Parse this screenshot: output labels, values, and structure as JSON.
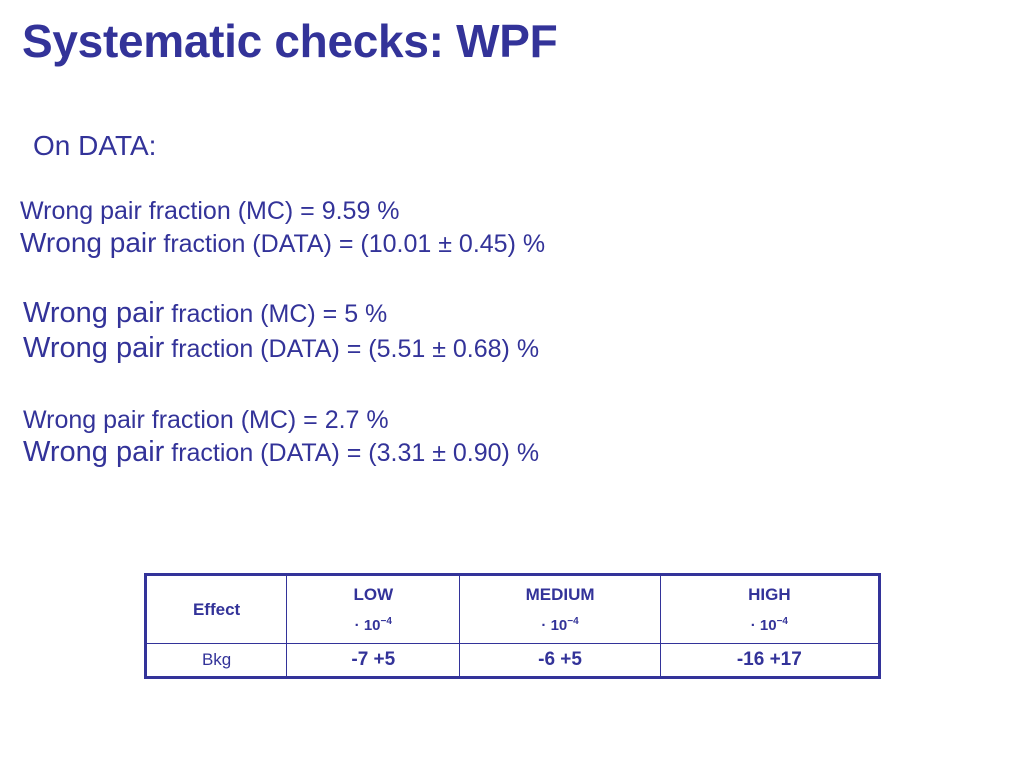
{
  "title": "Systematic checks: WPF",
  "subhead": "On DATA:",
  "blocks": [
    {
      "mc": {
        "lead": "Wrong pair fraction (MC) = 9.59 %"
      },
      "data": {
        "lead": "Wrong pair",
        "rest": " fraction (DATA) = (10.01 ± 0.45) %"
      }
    },
    {
      "mc": {
        "lead": "Wrong pair",
        "rest": " fraction (MC) = 5 %"
      },
      "data": {
        "lead": "Wrong pair",
        "rest": " fraction (DATA) = (5.51 ± 0.68) %"
      }
    },
    {
      "mc": {
        "lead": "Wrong pair fraction (MC) = 2.7 %"
      },
      "data": {
        "lead": "Wrong pair",
        "rest": " fraction (DATA) = (3.31 ± 0.90) %"
      }
    }
  ],
  "table": {
    "header": {
      "effect": "Effect",
      "columns": [
        {
          "label": "LOW",
          "unit_prefix": "· 10",
          "unit_exp": "−4"
        },
        {
          "label": "MEDIUM",
          "unit_prefix": "· 10",
          "unit_exp": "−4"
        },
        {
          "label": "HIGH",
          "unit_prefix": "· 10",
          "unit_exp": "−4"
        }
      ]
    },
    "rows": [
      {
        "label": "Bkg",
        "values": [
          "-7 +5",
          "-6 +5",
          "-16 +17"
        ]
      }
    ]
  }
}
